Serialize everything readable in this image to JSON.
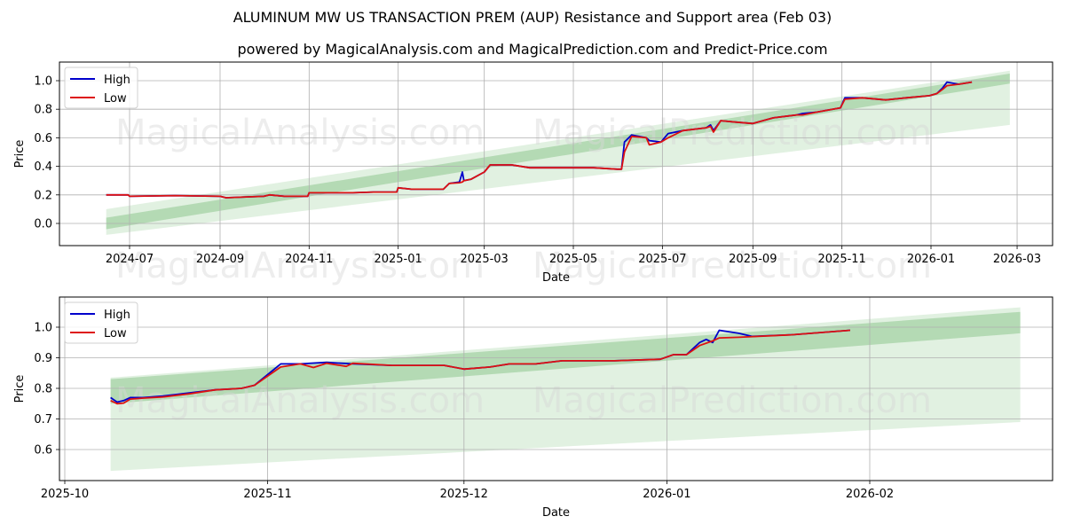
{
  "title": "ALUMINUM MW US TRANSACTION PREM (AUP) Resistance and Support area (Feb 03)",
  "subtitle": "powered by MagicalAnalysis.com and MagicalPrediction.com and Predict-Price.com",
  "watermarks": [
    "MagicalAnalysis.com",
    "MagicalPrediction.com"
  ],
  "colors": {
    "high": "#0000cc",
    "low": "#dd1111",
    "band_dark": "#7fbf7f",
    "band_light": "#c8e6c8",
    "grid": "#b0b0b0"
  },
  "legend": {
    "high_label": "High",
    "low_label": "Low"
  },
  "chart_data": [
    {
      "type": "line",
      "title": "Full history",
      "xlabel": "Date",
      "ylabel": "Price",
      "ylim": [
        -0.15,
        1.12
      ],
      "yticks": [
        "0.0",
        "0.2",
        "0.4",
        "0.6",
        "0.8",
        "1.0"
      ],
      "xticks": [
        "2024-07",
        "2024-09",
        "2024-11",
        "2025-01",
        "2025-03",
        "2025-05",
        "2025-07",
        "2025-09",
        "2025-11",
        "2026-01",
        "2026-03"
      ],
      "grid": true,
      "legend_position": "upper left",
      "series": [
        {
          "name": "High",
          "x": [
            "2024-06-15",
            "2024-06-30",
            "2024-07-01",
            "2024-08-01",
            "2024-09-01",
            "2024-09-05",
            "2024-10-01",
            "2024-10-05",
            "2024-10-15",
            "2024-10-31",
            "2024-11-01",
            "2024-11-30",
            "2024-12-01",
            "2024-12-15",
            "2024-12-31",
            "2025-01-01",
            "2025-01-10",
            "2025-02-01",
            "2025-02-05",
            "2025-02-12",
            "2025-02-14",
            "2025-02-15",
            "2025-02-20",
            "2025-03-01",
            "2025-03-05",
            "2025-03-20",
            "2025-04-01",
            "2025-04-15",
            "2025-05-15",
            "2025-05-31",
            "2025-06-03",
            "2025-06-05",
            "2025-06-10",
            "2025-06-20",
            "2025-06-22",
            "2025-06-30",
            "2025-07-05",
            "2025-07-15",
            "2025-07-31",
            "2025-08-03",
            "2025-08-05",
            "2025-08-10",
            "2025-08-20",
            "2025-09-01",
            "2025-09-15",
            "2025-10-01",
            "2025-10-05",
            "2025-10-15",
            "2025-10-31",
            "2025-11-03",
            "2025-11-15",
            "2025-12-01",
            "2025-12-15",
            "2025-12-31",
            "2026-01-05",
            "2026-01-09",
            "2026-01-12",
            "2026-01-20",
            "2026-01-29"
          ],
          "values": [
            0.2,
            0.2,
            0.19,
            0.195,
            0.19,
            0.18,
            0.19,
            0.2,
            0.19,
            0.19,
            0.215,
            0.215,
            0.215,
            0.22,
            0.22,
            0.25,
            0.24,
            0.24,
            0.28,
            0.29,
            0.36,
            0.3,
            0.31,
            0.36,
            0.41,
            0.41,
            0.39,
            0.39,
            0.39,
            0.38,
            0.38,
            0.57,
            0.62,
            0.6,
            0.58,
            0.57,
            0.63,
            0.65,
            0.67,
            0.69,
            0.65,
            0.72,
            0.71,
            0.7,
            0.74,
            0.76,
            0.77,
            0.78,
            0.81,
            0.88,
            0.88,
            0.865,
            0.88,
            0.895,
            0.91,
            0.95,
            0.99,
            0.975,
            0.99
          ]
        },
        {
          "name": "Low",
          "x": [
            "2024-06-15",
            "2024-06-30",
            "2024-07-01",
            "2024-08-01",
            "2024-09-01",
            "2024-09-05",
            "2024-10-01",
            "2024-10-05",
            "2024-10-15",
            "2024-10-31",
            "2024-11-01",
            "2024-11-30",
            "2024-12-01",
            "2024-12-15",
            "2024-12-31",
            "2025-01-01",
            "2025-01-10",
            "2025-02-01",
            "2025-02-05",
            "2025-02-12",
            "2025-02-14",
            "2025-02-15",
            "2025-02-20",
            "2025-03-01",
            "2025-03-05",
            "2025-03-20",
            "2025-04-01",
            "2025-04-15",
            "2025-05-15",
            "2025-05-31",
            "2025-06-03",
            "2025-06-05",
            "2025-06-10",
            "2025-06-20",
            "2025-06-22",
            "2025-06-30",
            "2025-07-05",
            "2025-07-15",
            "2025-07-31",
            "2025-08-03",
            "2025-08-05",
            "2025-08-10",
            "2025-08-20",
            "2025-09-01",
            "2025-09-15",
            "2025-10-01",
            "2025-10-05",
            "2025-10-15",
            "2025-10-31",
            "2025-11-03",
            "2025-11-15",
            "2025-12-01",
            "2025-12-15",
            "2025-12-31",
            "2026-01-05",
            "2026-01-09",
            "2026-01-12",
            "2026-01-20",
            "2026-01-29"
          ],
          "values": [
            0.2,
            0.2,
            0.19,
            0.195,
            0.19,
            0.18,
            0.19,
            0.2,
            0.19,
            0.19,
            0.215,
            0.215,
            0.215,
            0.22,
            0.22,
            0.25,
            0.24,
            0.24,
            0.28,
            0.285,
            0.29,
            0.3,
            0.31,
            0.36,
            0.41,
            0.41,
            0.39,
            0.39,
            0.39,
            0.38,
            0.38,
            0.5,
            0.61,
            0.6,
            0.55,
            0.57,
            0.6,
            0.65,
            0.67,
            0.68,
            0.64,
            0.72,
            0.71,
            0.7,
            0.74,
            0.76,
            0.76,
            0.78,
            0.81,
            0.87,
            0.88,
            0.865,
            0.88,
            0.895,
            0.91,
            0.94,
            0.965,
            0.975,
            0.99
          ]
        }
      ],
      "bands": [
        {
          "name": "outer-support-resistance",
          "x": [
            "2024-06-15",
            "2026-02-24"
          ],
          "upper": [
            0.1,
            1.07
          ],
          "lower": [
            -0.08,
            0.69
          ]
        },
        {
          "name": "inner-support-resistance",
          "x": [
            "2024-06-15",
            "2026-02-24"
          ],
          "upper": [
            0.04,
            1.05
          ],
          "lower": [
            -0.04,
            0.98
          ]
        }
      ]
    },
    {
      "type": "line",
      "title": "Recent zoom",
      "xlabel": "Date",
      "ylabel": "Price",
      "ylim": [
        0.5,
        1.09
      ],
      "yticks": [
        "0.6",
        "0.7",
        "0.8",
        "0.9",
        "1.0"
      ],
      "xticks": [
        "2025-10",
        "2025-11",
        "2025-12",
        "2026-01",
        "2026-02"
      ],
      "grid": true,
      "legend_position": "upper left",
      "series": [
        {
          "name": "High",
          "x": [
            "2025-10-08",
            "2025-10-09",
            "2025-10-10",
            "2025-10-11",
            "2025-10-13",
            "2025-10-16",
            "2025-10-20",
            "2025-10-24",
            "2025-10-28",
            "2025-10-30",
            "2025-11-03",
            "2025-11-06",
            "2025-11-10",
            "2025-11-14",
            "2025-11-20",
            "2025-11-28",
            "2025-12-01",
            "2025-12-05",
            "2025-12-08",
            "2025-12-12",
            "2025-12-16",
            "2025-12-20",
            "2025-12-24",
            "2025-12-31",
            "2026-01-02",
            "2026-01-04",
            "2026-01-06",
            "2026-01-07",
            "2026-01-08",
            "2026-01-09",
            "2026-01-12",
            "2026-01-14",
            "2026-01-20",
            "2026-01-29"
          ],
          "values": [
            0.77,
            0.755,
            0.76,
            0.77,
            0.77,
            0.775,
            0.785,
            0.795,
            0.8,
            0.81,
            0.88,
            0.88,
            0.885,
            0.88,
            0.875,
            0.875,
            0.863,
            0.87,
            0.88,
            0.88,
            0.89,
            0.89,
            0.89,
            0.895,
            0.91,
            0.91,
            0.95,
            0.96,
            0.95,
            0.99,
            0.98,
            0.97,
            0.975,
            0.99
          ]
        },
        {
          "name": "Low",
          "x": [
            "2025-10-08",
            "2025-10-09",
            "2025-10-10",
            "2025-10-11",
            "2025-10-13",
            "2025-10-16",
            "2025-10-20",
            "2025-10-24",
            "2025-10-28",
            "2025-10-30",
            "2025-11-03",
            "2025-11-06",
            "2025-11-08",
            "2025-11-10",
            "2025-11-13",
            "2025-11-14",
            "2025-11-20",
            "2025-11-28",
            "2025-12-01",
            "2025-12-05",
            "2025-12-08",
            "2025-12-12",
            "2025-12-16",
            "2025-12-20",
            "2025-12-24",
            "2025-12-31",
            "2026-01-02",
            "2026-01-04",
            "2026-01-06",
            "2026-01-08",
            "2026-01-09",
            "2026-01-12",
            "2026-01-20",
            "2026-01-29"
          ],
          "values": [
            0.76,
            0.75,
            0.752,
            0.765,
            0.768,
            0.772,
            0.782,
            0.795,
            0.8,
            0.81,
            0.87,
            0.88,
            0.868,
            0.882,
            0.872,
            0.882,
            0.875,
            0.875,
            0.863,
            0.87,
            0.88,
            0.88,
            0.89,
            0.89,
            0.89,
            0.895,
            0.91,
            0.91,
            0.94,
            0.955,
            0.965,
            0.967,
            0.975,
            0.99
          ]
        }
      ],
      "bands": [
        {
          "name": "outer-support-resistance",
          "x": [
            "2025-10-08",
            "2026-02-24"
          ],
          "upper": [
            0.835,
            1.065
          ],
          "lower": [
            0.53,
            0.69
          ]
        },
        {
          "name": "inner-support-resistance",
          "x": [
            "2025-10-08",
            "2026-02-24"
          ],
          "upper": [
            0.83,
            1.05
          ],
          "lower": [
            0.75,
            0.98
          ]
        }
      ]
    }
  ]
}
